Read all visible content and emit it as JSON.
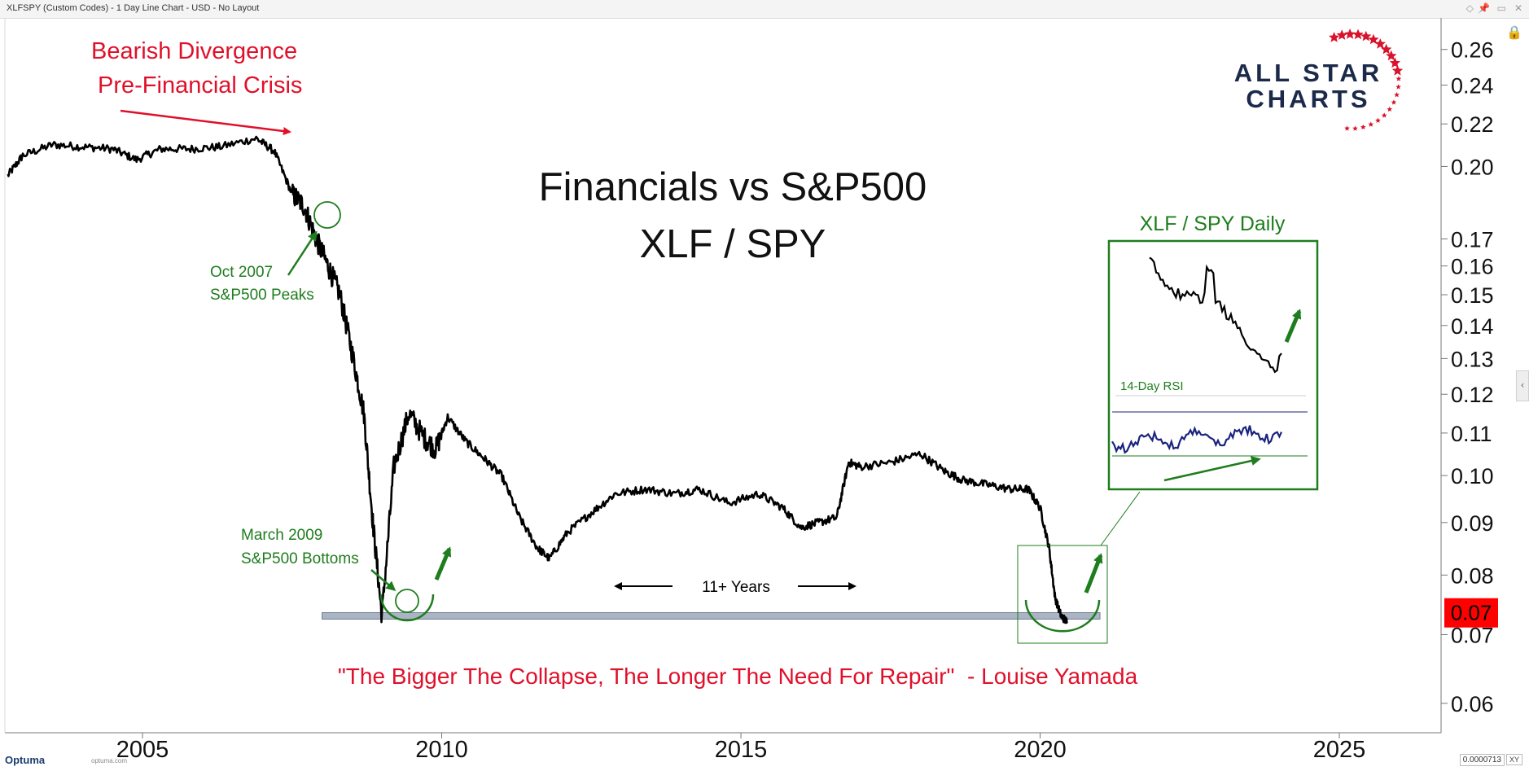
{
  "window": {
    "title": "XLFSPY (Custom Codes) - 1 Day Line Chart - USD - No Layout",
    "buttons": [
      "◇",
      "📌",
      "▭",
      "✕"
    ]
  },
  "chart_data": {
    "type": "line",
    "symbol": "XLFSPY",
    "title": "Financials vs S&P500",
    "subtitle": "XLF / SPY",
    "log_scale": true,
    "grid": false,
    "xlim": [
      2002.7,
      2026.7
    ],
    "ylim": [
      0.057,
      0.275
    ],
    "x_ticks": [
      2005,
      2010,
      2015,
      2020,
      2025
    ],
    "x_tick_labels": [
      "2005",
      "2010",
      "2015",
      "2020",
      "2025"
    ],
    "y_ticks": [
      0.06,
      0.07,
      0.08,
      0.09,
      0.1,
      0.11,
      0.12,
      0.13,
      0.14,
      0.15,
      0.16,
      0.17,
      0.2,
      0.22,
      0.24,
      0.26
    ],
    "y_tick_labels": [
      "0.06",
      "0.07",
      "0.08",
      "0.09",
      "0.10",
      "0.11",
      "0.12",
      "0.13",
      "0.14",
      "0.15",
      "0.16",
      "0.17",
      "0.20",
      "0.22",
      "0.24",
      "0.26"
    ],
    "last_value": "0.07",
    "last_value_color": "#ff0000",
    "line_color": "#000000",
    "series": [
      {
        "x": [
          2002.75,
          2003.0,
          2003.5,
          2004.0,
          2004.5,
          2004.9,
          2005.3,
          2005.8,
          2006.3,
          2006.9,
          2007.2,
          2007.5,
          2007.7,
          2007.9,
          2008.1,
          2008.3,
          2008.5,
          2008.7,
          2008.85,
          2009.0,
          2009.2,
          2009.45,
          2009.7,
          2009.9,
          2010.1,
          2010.4,
          2010.7,
          2011.0,
          2011.3,
          2011.6,
          2011.8,
          2012.1,
          2012.5,
          2012.9,
          2013.4,
          2013.9,
          2014.3,
          2014.8,
          2015.3,
          2015.7,
          2016.0,
          2016.3,
          2016.6,
          2016.8,
          2017.0,
          2017.5,
          2018.0,
          2018.4,
          2018.7,
          2019.1,
          2019.5,
          2019.8,
          2020.0,
          2020.15,
          2020.25,
          2020.35,
          2020.45
        ],
        "y": [
          0.196,
          0.205,
          0.21,
          0.209,
          0.208,
          0.203,
          0.208,
          0.208,
          0.209,
          0.213,
          0.207,
          0.188,
          0.183,
          0.17,
          0.16,
          0.15,
          0.132,
          0.115,
          0.09,
          0.073,
          0.102,
          0.115,
          0.109,
          0.106,
          0.114,
          0.108,
          0.104,
          0.1,
          0.091,
          0.085,
          0.083,
          0.088,
          0.092,
          0.096,
          0.097,
          0.096,
          0.097,
          0.094,
          0.096,
          0.093,
          0.089,
          0.09,
          0.091,
          0.103,
          0.102,
          0.103,
          0.105,
          0.101,
          0.099,
          0.098,
          0.097,
          0.097,
          0.093,
          0.085,
          0.076,
          0.073,
          0.072
        ]
      }
    ],
    "support_line": {
      "value": 0.073,
      "x_range": [
        2008.0,
        2021.0
      ],
      "color": "#aab4c2"
    }
  },
  "annotations": {
    "divergence_line1": "Bearish Divergence",
    "divergence_line2": "Pre-Financial Crisis",
    "oct2007_line1": "Oct 2007",
    "oct2007_line2": "S&P500 Peaks",
    "mar2009_line1": "March 2009",
    "mar2009_line2": "S&P500 Bottoms",
    "years": "11+ Years",
    "quote": "\"The Bigger The Collapse, The Longer The Need For Repair\"  - Louise Yamada",
    "inset_title": "XLF / SPY Daily",
    "inset_rsi_label": "14-Day RSI",
    "red": "#e0102a",
    "green": "#1e7d1e"
  },
  "logo": {
    "line1": "ALL STAR",
    "line2": "CHARTS",
    "text_color": "#1b2a4a",
    "star_color": "#d9132b"
  },
  "footer": {
    "brand": "Optuma",
    "url": "optuma.com",
    "scale_readout": "0.0000713",
    "xy_label": "XY"
  }
}
